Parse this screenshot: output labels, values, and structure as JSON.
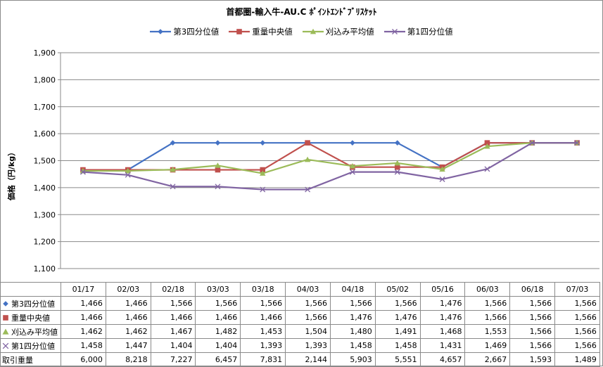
{
  "chart_data": {
    "type": "line",
    "title": "首都圏-輸入牛-AU.C ﾎﾟｲﾝﾄｴﾝﾄﾞﾌﾞﾘｽｹｯﾄ",
    "ylabel": "価格（円/kg）",
    "categories": [
      "01/17",
      "02/03",
      "02/18",
      "03/03",
      "03/18",
      "04/03",
      "04/18",
      "05/02",
      "05/16",
      "06/03",
      "06/18",
      "07/03"
    ],
    "ylim": [
      1100,
      1900
    ],
    "yticks": [
      "1,100",
      "1,200",
      "1,300",
      "1,400",
      "1,500",
      "1,600",
      "1,700",
      "1,800",
      "1,900"
    ],
    "grid": true,
    "legend": "top",
    "series": [
      {
        "name": "第3四分位値",
        "color": "#4472c4",
        "marker": "diamond",
        "values": [
          1466,
          1466,
          1566,
          1566,
          1566,
          1566,
          1566,
          1566,
          1476,
          1566,
          1566,
          1566
        ]
      },
      {
        "name": "重量中央値",
        "color": "#c0504d",
        "marker": "square",
        "values": [
          1466,
          1466,
          1466,
          1466,
          1466,
          1566,
          1476,
          1476,
          1476,
          1566,
          1566,
          1566
        ]
      },
      {
        "name": "刈込み平均値",
        "color": "#9bbb59",
        "marker": "triangle",
        "values": [
          1462,
          1462,
          1467,
          1482,
          1453,
          1504,
          1480,
          1491,
          1468,
          1553,
          1566,
          1566
        ]
      },
      {
        "name": "第1四分位値",
        "color": "#8064a2",
        "marker": "cross",
        "values": [
          1458,
          1447,
          1404,
          1404,
          1393,
          1393,
          1458,
          1458,
          1431,
          1469,
          1566,
          1566
        ]
      }
    ],
    "table": {
      "rows": [
        {
          "label": "第3四分位値",
          "marker": "diamond",
          "color": "#4472c4",
          "cells": [
            "1,466",
            "1,466",
            "1,566",
            "1,566",
            "1,566",
            "1,566",
            "1,566",
            "1,566",
            "1,476",
            "1,566",
            "1,566",
            "1,566"
          ]
        },
        {
          "label": "重量中央値",
          "marker": "square",
          "color": "#c0504d",
          "cells": [
            "1,466",
            "1,466",
            "1,466",
            "1,466",
            "1,466",
            "1,566",
            "1,476",
            "1,476",
            "1,476",
            "1,566",
            "1,566",
            "1,566"
          ]
        },
        {
          "label": "刈込み平均値",
          "marker": "triangle",
          "color": "#9bbb59",
          "cells": [
            "1,462",
            "1,462",
            "1,467",
            "1,482",
            "1,453",
            "1,504",
            "1,480",
            "1,491",
            "1,468",
            "1,553",
            "1,566",
            "1,566"
          ]
        },
        {
          "label": "第1四分位値",
          "marker": "cross",
          "color": "#8064a2",
          "cells": [
            "1,458",
            "1,447",
            "1,404",
            "1,404",
            "1,393",
            "1,393",
            "1,458",
            "1,458",
            "1,431",
            "1,469",
            "1,566",
            "1,566"
          ]
        },
        {
          "label": "取引重量",
          "marker": "",
          "color": "",
          "cells": [
            "6,000",
            "8,218",
            "7,227",
            "6,457",
            "7,831",
            "2,144",
            "5,903",
            "5,551",
            "4,657",
            "2,667",
            "1,593",
            "1,489"
          ]
        }
      ]
    }
  }
}
